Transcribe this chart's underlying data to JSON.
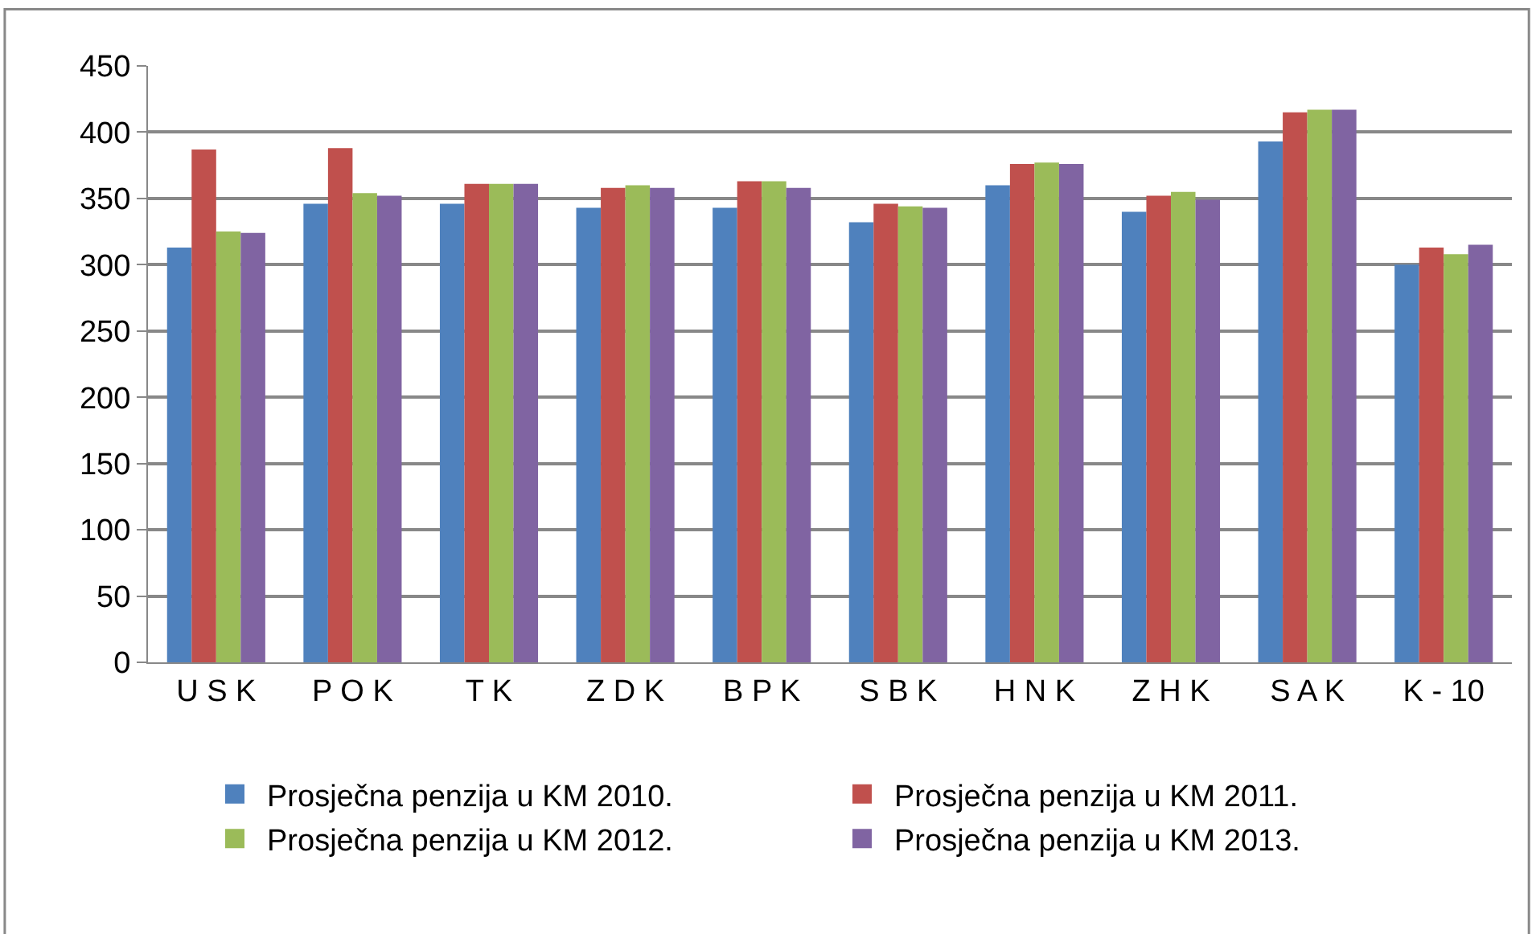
{
  "chart_data": {
    "type": "bar",
    "categories": [
      "U S K",
      "P O K",
      "T K",
      "Z D K",
      "B P K",
      "S B K",
      "H N K",
      "Z H K",
      "S A K",
      "K - 10"
    ],
    "series": [
      {
        "name": "Prosječna penzija u KM 2010.",
        "color": "#4f81bd",
        "values": [
          313,
          346,
          346,
          343,
          343,
          332,
          360,
          340,
          393,
          300
        ]
      },
      {
        "name": "Prosječna penzija u KM 2011.",
        "color": "#c0504d",
        "values": [
          387,
          388,
          361,
          358,
          363,
          346,
          376,
          352,
          415,
          313
        ]
      },
      {
        "name": "Prosječna penzija u KM 2012.",
        "color": "#9bbb59",
        "values": [
          325,
          354,
          361,
          360,
          363,
          344,
          377,
          355,
          417,
          308
        ]
      },
      {
        "name": "Prosječna penzija u KM 2013.",
        "color": "#8064a2",
        "values": [
          324,
          352,
          361,
          358,
          358,
          343,
          376,
          349,
          417,
          315
        ]
      }
    ],
    "ylim": [
      0,
      450
    ],
    "yticks": [
      0,
      50,
      100,
      150,
      200,
      250,
      300,
      350,
      400,
      450
    ],
    "grid": "y",
    "legend": "bottom"
  }
}
